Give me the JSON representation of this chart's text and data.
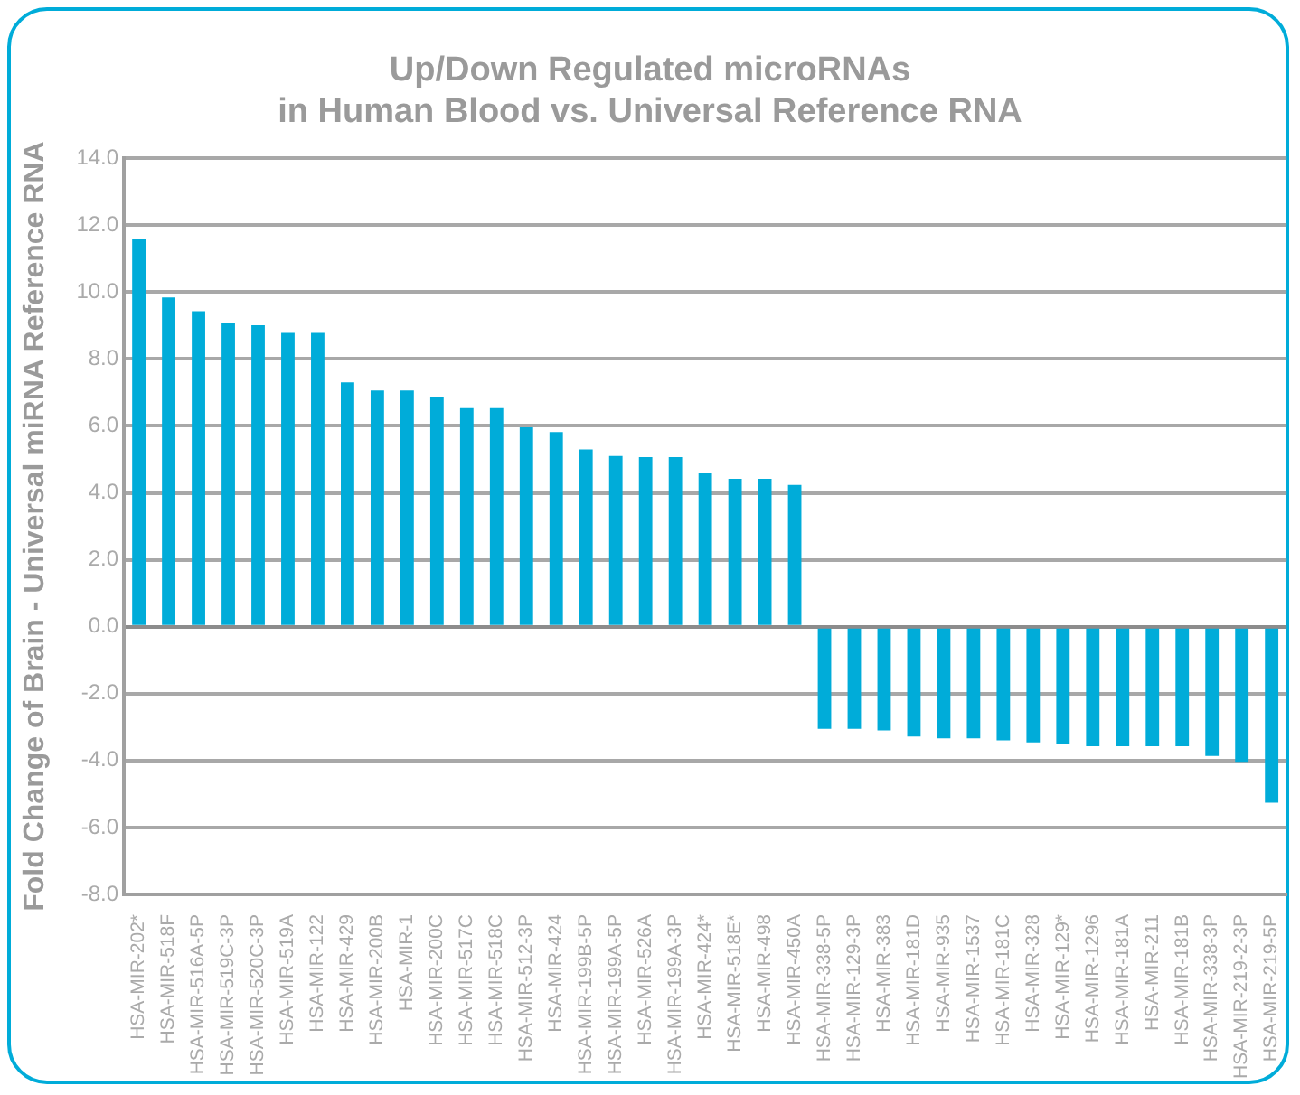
{
  "chart_data": {
    "type": "bar",
    "title": [
      "Up/Down Regulated microRNAs",
      "in Human Blood vs. Universal Reference RNA"
    ],
    "ylabel": "Fold Change of Brain - Universal miRNA Reference RNA",
    "categories": [
      "HSA-MIR-202*",
      "HSA-MIR-518F",
      "HSA-MIR-516A-5P",
      "HSA-MIR-519C-3P",
      "HSA-MIR-520C-3P",
      "HSA-MIR-519A",
      "HSA-MIR-122",
      "HSA-MIR-429",
      "HSA-MIR-200B",
      "HSA-MIR-1",
      "HSA-MIR-200C",
      "HSA-MIR-517C",
      "HSA-MIR-518C",
      "HSA-MIR-512-3P",
      "HSA-MIR-424",
      "HSA-MIR-199B-5P",
      "HSA-MIR-199A-5P",
      "HSA-MIR-526A",
      "HSA-MIR-199A-3P",
      "HSA-MIR-424*",
      "HSA-MIR-518E*",
      "HSA-MIR-498",
      "HSA-MIR-450A",
      "HSA-MIR-338-5P",
      "HSA-MIR-129-3P",
      "HSA-MIR-383",
      "HSA-MIR-181D",
      "HSA-MIR-935",
      "HSA-MIR-1537",
      "HSA-MIR-181C",
      "HSA-MIR-328",
      "HSA-MIR-129*",
      "HSA-MIR-1296",
      "HSA-MIR-181A",
      "HSA-MIR-211",
      "HSA-MIR-181B",
      "HSA-MIR-338-3P",
      "HSA-MIR-219-2-3P",
      "HSA-MIR-219-5P"
    ],
    "values": [
      11.6,
      9.84,
      9.43,
      9.07,
      9.01,
      8.78,
      8.78,
      7.3,
      7.06,
      7.06,
      6.88,
      6.53,
      6.53,
      5.96,
      5.82,
      5.3,
      5.1,
      5.07,
      5.07,
      4.6,
      4.42,
      4.42,
      4.24,
      -3.05,
      -3.05,
      -3.1,
      -3.28,
      -3.34,
      -3.34,
      -3.4,
      -3.46,
      -3.51,
      -3.57,
      -3.57,
      -3.57,
      -3.57,
      -3.86,
      -4.04,
      -5.26
    ],
    "color": "#00acd9",
    "ylim": [
      -8,
      14
    ],
    "yticks": [
      {
        "value": -8,
        "label": "-8.0"
      },
      {
        "value": -6,
        "label": "-6.0"
      },
      {
        "value": -4,
        "label": "-4.0"
      },
      {
        "value": -2,
        "label": "-2.0"
      },
      {
        "value": 0,
        "label": "0.0"
      },
      {
        "value": 2,
        "label": "2.0"
      },
      {
        "value": 4,
        "label": "4.0"
      },
      {
        "value": 6,
        "label": "6.0"
      },
      {
        "value": 8,
        "label": "8.0"
      },
      {
        "value": 10,
        "label": "10.0"
      },
      {
        "value": 12,
        "label": "12.0"
      },
      {
        "value": 14,
        "label": "14.0"
      }
    ],
    "grid": "y"
  }
}
